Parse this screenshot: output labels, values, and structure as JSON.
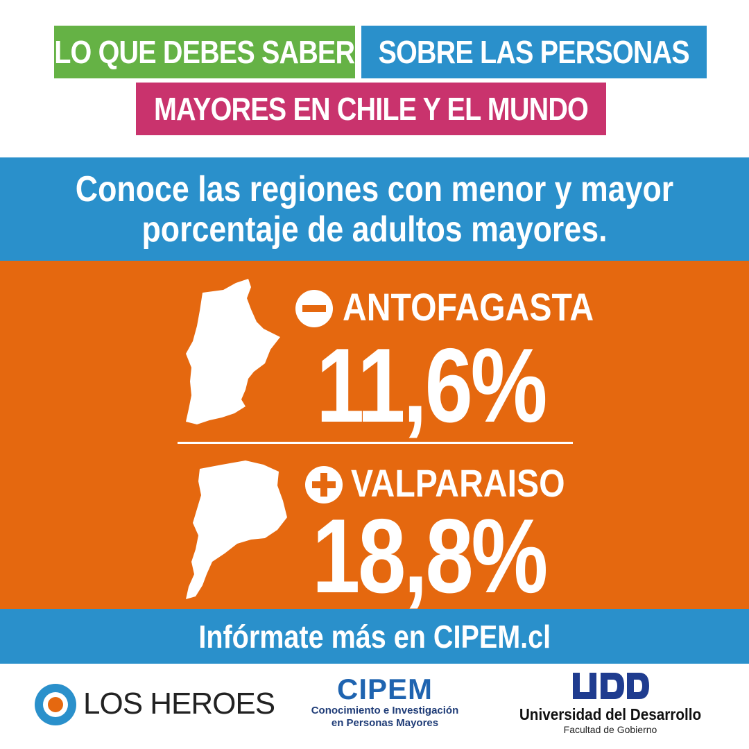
{
  "header": {
    "tag1": "LO QUE DEBES SABER",
    "tag2": "SOBRE LAS PERSONAS",
    "tag3": "MAYORES EN CHILE Y EL MUNDO"
  },
  "headline": {
    "line1": "Conoce las regiones con menor y mayor",
    "line2": "porcentaje de adultos mayores."
  },
  "regions": [
    {
      "sign": "minus-icon",
      "name": "ANTOFAGASTA",
      "value": "11,6%"
    },
    {
      "sign": "plus-icon",
      "name": "VALPARAISO",
      "value": "18,8%"
    }
  ],
  "footer": {
    "cta": "Infórmate más en CIPEM.cl"
  },
  "logos": {
    "heroes": "LOS HEROES",
    "cipem_title": "CIPEM",
    "cipem_sub1": "Conocimiento e Investigación",
    "cipem_sub2": "en Personas Mayores",
    "udd_name": "Universidad del Desarrollo",
    "udd_sub": "Facultad de Gobierno"
  },
  "colors": {
    "green": "#65b245",
    "blue": "#2a90cb",
    "magenta": "#c9336d",
    "orange": "#e5680f"
  }
}
